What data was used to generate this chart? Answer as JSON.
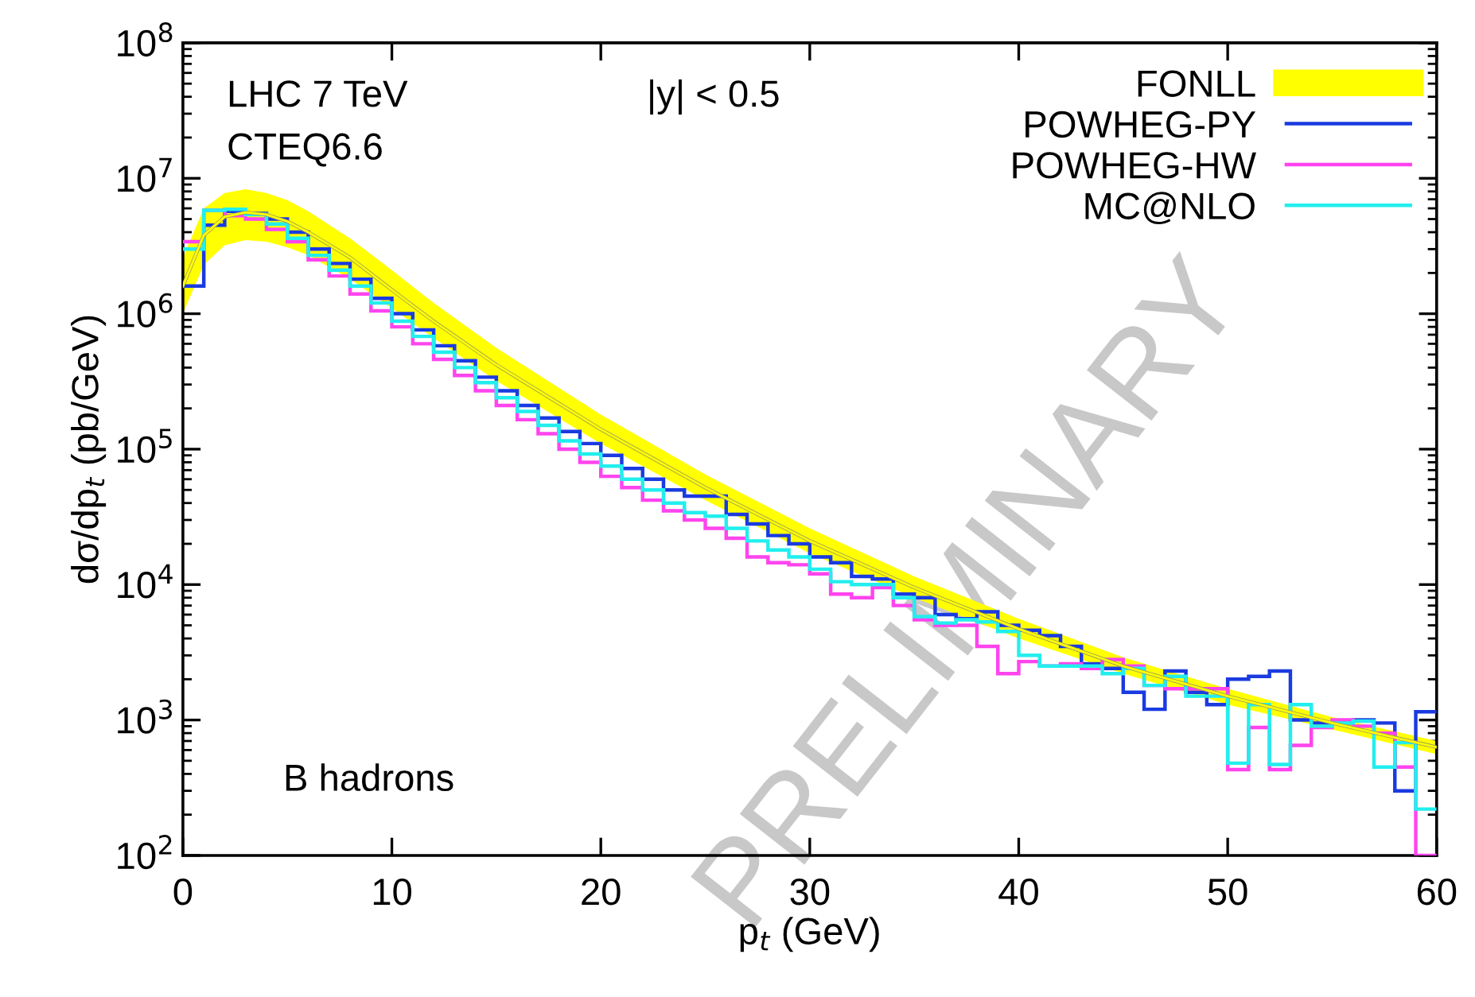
{
  "chart_data": {
    "type": "histogram",
    "xlabel": "p$_{t}$ (GeV)",
    "ylabel": "dσ/dp$_{t}$ (pb/GeV)",
    "log": "y",
    "xlim": [
      0,
      60
    ],
    "ylim": [
      100,
      100000000
    ],
    "xticks": [
      0,
      10,
      20,
      30,
      40,
      50,
      60
    ],
    "yticks": [
      {
        "value": 100,
        "label": "10$^{2}$"
      },
      {
        "value": 1000,
        "label": "10$^{3}$"
      },
      {
        "value": 10000,
        "label": "10$^{4}$"
      },
      {
        "value": 100000,
        "label": "10$^{5}$"
      },
      {
        "value": 1000000,
        "label": "10$^{6}$"
      },
      {
        "value": 10000000,
        "label": "10$^{7}$"
      },
      {
        "value": 100000000,
        "label": "10$^{8}$"
      }
    ],
    "grid": false,
    "legend": "top right",
    "bins": [
      0,
      1,
      2,
      3,
      4,
      5,
      6,
      7,
      8,
      9,
      10,
      11,
      12,
      13,
      14,
      15,
      16,
      17,
      18,
      19,
      20,
      21,
      22,
      23,
      24,
      25,
      26,
      27,
      28,
      29,
      30,
      31,
      32,
      33,
      34,
      35,
      36,
      37,
      38,
      39,
      40,
      41,
      42,
      43,
      44,
      45,
      46,
      47,
      48,
      49,
      50,
      51,
      52,
      53,
      54,
      55,
      56,
      57,
      58,
      59,
      60
    ],
    "series": [
      {
        "name": "FONLL",
        "type": "line",
        "color": "#ffff00",
        "x": [
          0,
          1,
          2,
          3,
          4,
          5,
          6,
          8,
          10,
          12,
          15,
          20,
          25,
          30,
          35,
          40,
          45,
          50,
          55,
          60
        ],
        "values": [
          1600000,
          3800000,
          5200000,
          5600000,
          5400000,
          4800000,
          4000000,
          2600000,
          1500000,
          880000,
          420000,
          140000,
          52000,
          21000,
          9500,
          4700,
          2500,
          1500,
          950,
          630
        ],
        "upper": [
          2600000,
          6000000,
          7800000,
          8300000,
          7800000,
          6900000,
          5700000,
          3600000,
          2100000,
          1200000,
          560000,
          180000,
          65000,
          26000,
          11500,
          5600,
          2900,
          1700,
          1050,
          700
        ],
        "lower": [
          1000000,
          2300000,
          3200000,
          3500000,
          3400000,
          3100000,
          2700000,
          1800000,
          1100000,
          660000,
          320000,
          110000,
          42000,
          17000,
          8000,
          4000,
          2200,
          1300,
          850,
          560
        ]
      },
      {
        "name": "POWHEG-PY",
        "color": "#1a3be0",
        "values": [
          1600000,
          4500000,
          5700000,
          5500000,
          5000000,
          4000000,
          3000000,
          2350000,
          1800000,
          1300000,
          1000000,
          760000,
          580000,
          450000,
          340000,
          270000,
          210000,
          170000,
          135000,
          110000,
          90000,
          72000,
          60000,
          50000,
          45000,
          45000,
          33000,
          28000,
          23000,
          20000,
          16000,
          14500,
          11500,
          11000,
          8500,
          8000,
          6000,
          5600,
          6300,
          5000,
          4600,
          4200,
          3500,
          2600,
          2400,
          1600,
          1200,
          2300,
          1600,
          1300,
          2000,
          2100,
          2300,
          1000,
          950,
          950,
          1000,
          950,
          300,
          1150
        ]
      },
      {
        "name": "POWHEG-HW",
        "color": "#ff44ee",
        "values": [
          3400000,
          5800000,
          5300000,
          5000000,
          4200000,
          3400000,
          2500000,
          1900000,
          1400000,
          1050000,
          800000,
          600000,
          460000,
          350000,
          270000,
          210000,
          165000,
          130000,
          100000,
          80000,
          63000,
          52000,
          42000,
          35000,
          30000,
          26000,
          22000,
          16000,
          14500,
          14000,
          12000,
          8500,
          8000,
          9500,
          7000,
          5500,
          5000,
          5000,
          3500,
          2200,
          2700,
          2500,
          2600,
          2400,
          2800,
          2500,
          1800,
          1700,
          1700,
          1700,
          430,
          880,
          430,
          650,
          880,
          1000,
          900,
          800,
          450,
          100
        ]
      },
      {
        "name": "MC@NLO",
        "color": "#22eeee",
        "values": [
          3000000,
          5800000,
          5900000,
          5400000,
          4600000,
          3600000,
          2700000,
          2100000,
          1600000,
          1200000,
          880000,
          680000,
          520000,
          400000,
          310000,
          240000,
          190000,
          150000,
          115000,
          92000,
          75000,
          60000,
          50000,
          40000,
          34000,
          32000,
          26000,
          21000,
          18000,
          16000,
          13000,
          10500,
          10000,
          10000,
          8000,
          5800,
          5200,
          5500,
          5300,
          4500,
          3000,
          2500,
          2500,
          2500,
          2200,
          2400,
          1800,
          2100,
          1500,
          1500,
          480,
          1300,
          470,
          1300,
          900,
          950,
          980,
          450,
          680,
          220
        ]
      }
    ],
    "annotations": [
      "LHC 7 TeV",
      "CTEQ6.6",
      "|y| < 0.5",
      "B hadrons",
      "PRELIMINARY"
    ]
  }
}
